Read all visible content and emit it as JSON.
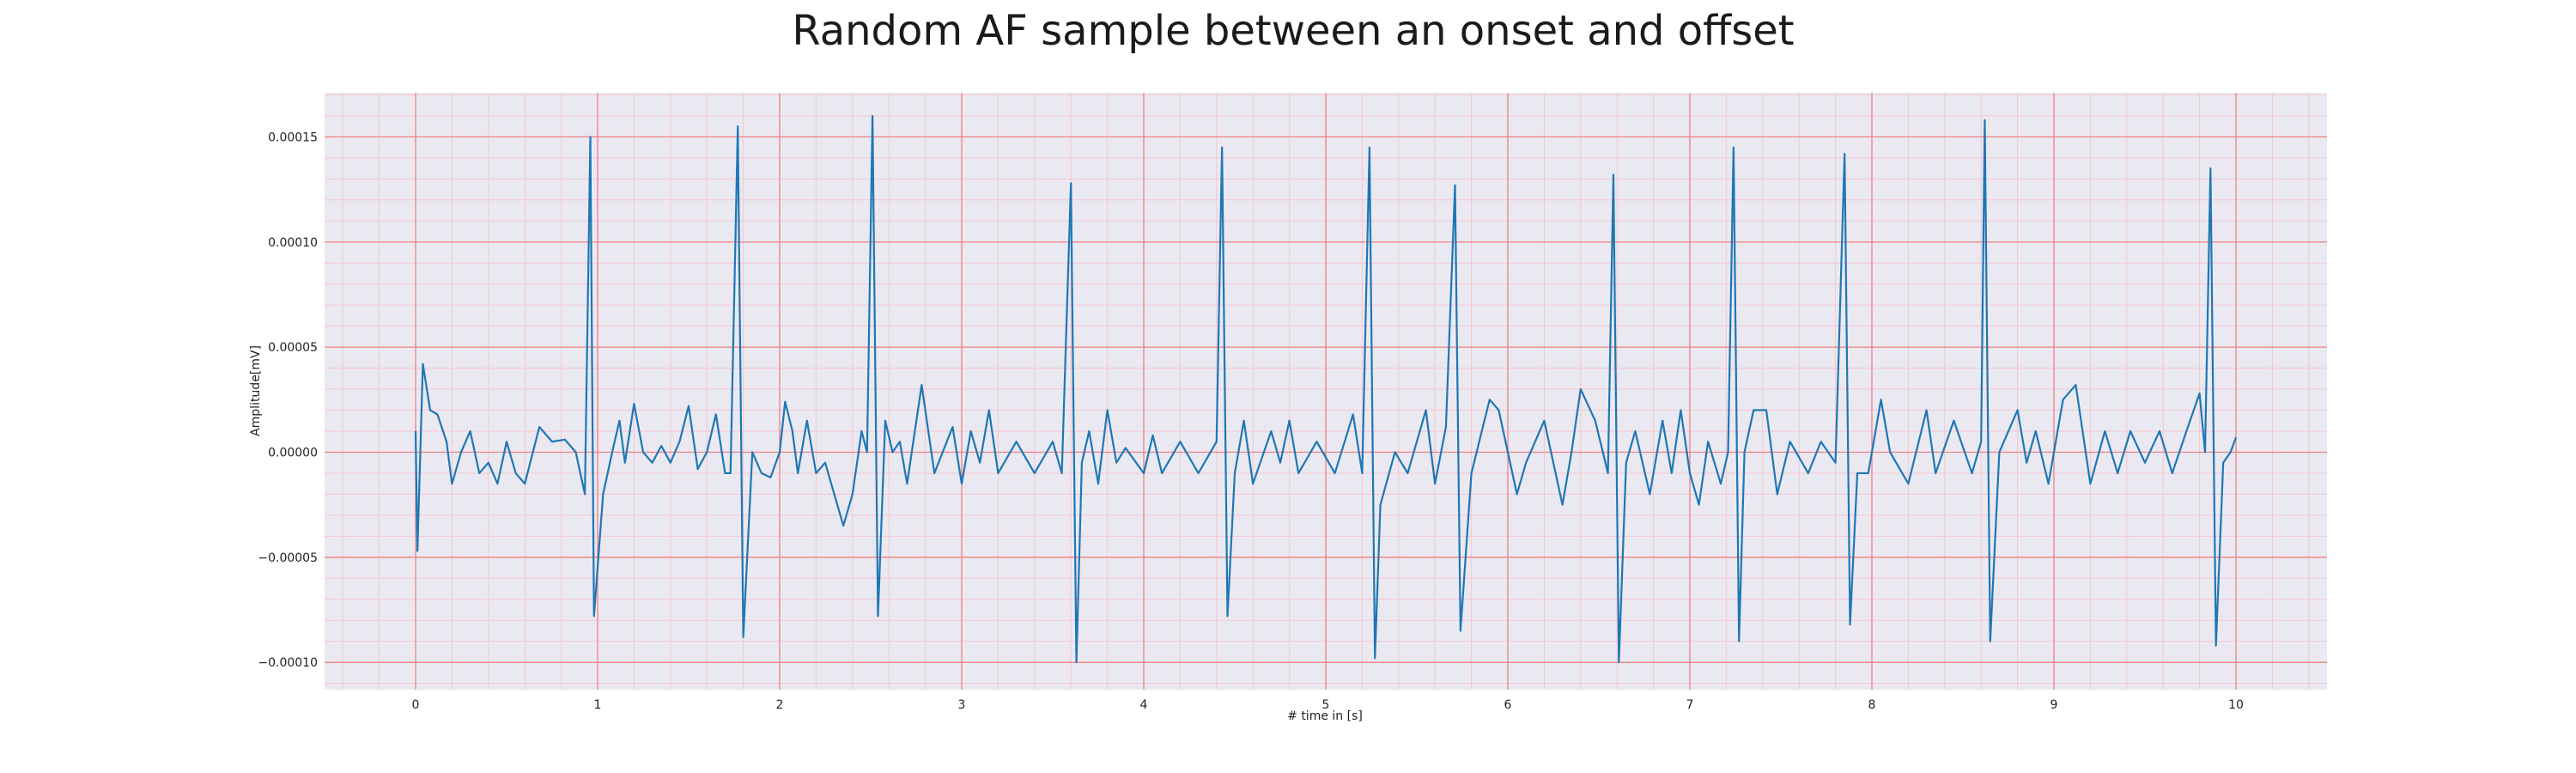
{
  "chart_data": {
    "type": "line",
    "title": "Random AF sample between an onset and offset",
    "xlabel": "# time in [s]",
    "ylabel": "Amplitude[mV]",
    "xlim": [
      -0.5,
      10.5
    ],
    "ylim": [
      -0.000113,
      0.000171
    ],
    "x_ticks": [
      0,
      1,
      2,
      3,
      4,
      5,
      6,
      7,
      8,
      9,
      10
    ],
    "x_tick_labels": [
      "0",
      "1",
      "2",
      "3",
      "4",
      "5",
      "6",
      "7",
      "8",
      "9",
      "10"
    ],
    "y_ticks": [
      -0.0001,
      -5e-05,
      0.0,
      5e-05,
      0.0001,
      0.00015
    ],
    "y_tick_labels": [
      "−0.00010",
      "−0.00005",
      "0.00000",
      "0.00005",
      "0.00010",
      "0.00015"
    ],
    "grid": true,
    "minor_grid": true,
    "colors": {
      "line": "#1f77b4",
      "grid_major": "#f08080",
      "grid_minor": "#f5c6cf",
      "background": "#eae9f2"
    },
    "series": [
      {
        "values": [
          [
            0.0,
            1e-05
          ],
          [
            0.01,
            -4.7e-05
          ],
          [
            0.04,
            4.2e-05
          ],
          [
            0.08,
            2e-05
          ],
          [
            0.12,
            1.8e-05
          ],
          [
            0.17,
            5e-06
          ],
          [
            0.2,
            -1.5e-05
          ],
          [
            0.25,
            0.0
          ],
          [
            0.3,
            1e-05
          ],
          [
            0.35,
            -1e-05
          ],
          [
            0.4,
            -5e-06
          ],
          [
            0.45,
            -1.5e-05
          ],
          [
            0.5,
            5e-06
          ],
          [
            0.55,
            -1e-05
          ],
          [
            0.6,
            -1.5e-05
          ],
          [
            0.68,
            1.2e-05
          ],
          [
            0.75,
            5e-06
          ],
          [
            0.82,
            6e-06
          ],
          [
            0.88,
            0.0
          ],
          [
            0.93,
            -2e-05
          ],
          [
            0.96,
            0.00015
          ],
          [
            0.98,
            -7.8e-05
          ],
          [
            1.03,
            -2e-05
          ],
          [
            1.08,
            0.0
          ],
          [
            1.12,
            1.5e-05
          ],
          [
            1.15,
            -5e-06
          ],
          [
            1.2,
            2.3e-05
          ],
          [
            1.25,
            0.0
          ],
          [
            1.3,
            -5e-06
          ],
          [
            1.35,
            3e-06
          ],
          [
            1.4,
            -5e-06
          ],
          [
            1.45,
            5e-06
          ],
          [
            1.5,
            2.2e-05
          ],
          [
            1.55,
            -8e-06
          ],
          [
            1.6,
            0.0
          ],
          [
            1.65,
            1.8e-05
          ],
          [
            1.7,
            -1e-05
          ],
          [
            1.73,
            -1e-05
          ],
          [
            1.77,
            0.000155
          ],
          [
            1.8,
            -8.8e-05
          ],
          [
            1.85,
            0.0
          ],
          [
            1.9,
            -1e-05
          ],
          [
            1.95,
            -1.2e-05
          ],
          [
            2.0,
            0.0
          ],
          [
            2.03,
            2.4e-05
          ],
          [
            2.07,
            1e-05
          ],
          [
            2.1,
            -1e-05
          ],
          [
            2.15,
            1.5e-05
          ],
          [
            2.2,
            -1e-05
          ],
          [
            2.25,
            -5e-06
          ],
          [
            2.3,
            -2e-05
          ],
          [
            2.35,
            -3.5e-05
          ],
          [
            2.4,
            -2e-05
          ],
          [
            2.45,
            1e-05
          ],
          [
            2.48,
            0.0
          ],
          [
            2.51,
            0.00016
          ],
          [
            2.54,
            -7.8e-05
          ],
          [
            2.58,
            1.5e-05
          ],
          [
            2.62,
            0.0
          ],
          [
            2.66,
            5e-06
          ],
          [
            2.7,
            -1.5e-05
          ],
          [
            2.78,
            3.2e-05
          ],
          [
            2.85,
            -1e-05
          ],
          [
            2.95,
            1.2e-05
          ],
          [
            3.0,
            -1.5e-05
          ],
          [
            3.05,
            1e-05
          ],
          [
            3.1,
            -5e-06
          ],
          [
            3.15,
            2e-05
          ],
          [
            3.2,
            -1e-05
          ],
          [
            3.3,
            5e-06
          ],
          [
            3.4,
            -1e-05
          ],
          [
            3.5,
            5e-06
          ],
          [
            3.55,
            -1e-05
          ],
          [
            3.6,
            0.000128
          ],
          [
            3.63,
            -0.0001
          ],
          [
            3.66,
            -5e-06
          ],
          [
            3.7,
            1e-05
          ],
          [
            3.75,
            -1.5e-05
          ],
          [
            3.8,
            2e-05
          ],
          [
            3.85,
            -5e-06
          ],
          [
            3.9,
            2e-06
          ],
          [
            4.0,
            -1e-05
          ],
          [
            4.05,
            8e-06
          ],
          [
            4.1,
            -1e-05
          ],
          [
            4.2,
            5e-06
          ],
          [
            4.3,
            -1e-05
          ],
          [
            4.4,
            5e-06
          ],
          [
            4.43,
            0.000145
          ],
          [
            4.46,
            -7.8e-05
          ],
          [
            4.5,
            -1e-05
          ],
          [
            4.55,
            1.5e-05
          ],
          [
            4.6,
            -1.5e-05
          ],
          [
            4.7,
            1e-05
          ],
          [
            4.75,
            -5e-06
          ],
          [
            4.8,
            1.5e-05
          ],
          [
            4.85,
            -1e-05
          ],
          [
            4.95,
            5e-06
          ],
          [
            5.05,
            -1e-05
          ],
          [
            5.15,
            1.8e-05
          ],
          [
            5.2,
            -1e-05
          ],
          [
            5.24,
            0.000145
          ],
          [
            5.27,
            -9.8e-05
          ],
          [
            5.3,
            -2.5e-05
          ],
          [
            5.38,
            0.0
          ],
          [
            5.45,
            -1e-05
          ],
          [
            5.55,
            2e-05
          ],
          [
            5.6,
            -1.5e-05
          ],
          [
            5.66,
            1.2e-05
          ],
          [
            5.71,
            0.000127
          ],
          [
            5.74,
            -8.5e-05
          ],
          [
            5.8,
            -1e-05
          ],
          [
            5.9,
            2.5e-05
          ],
          [
            5.95,
            2e-05
          ],
          [
            6.05,
            -2e-05
          ],
          [
            6.1,
            -5e-06
          ],
          [
            6.2,
            1.5e-05
          ],
          [
            6.3,
            -2.5e-05
          ],
          [
            6.35,
            0.0
          ],
          [
            6.4,
            3e-05
          ],
          [
            6.48,
            1.5e-05
          ],
          [
            6.55,
            -1e-05
          ],
          [
            6.58,
            0.000132
          ],
          [
            6.61,
            -0.0001
          ],
          [
            6.65,
            -5e-06
          ],
          [
            6.7,
            1e-05
          ],
          [
            6.78,
            -2e-05
          ],
          [
            6.85,
            1.5e-05
          ],
          [
            6.9,
            -1e-05
          ],
          [
            6.95,
            2e-05
          ],
          [
            7.0,
            -1e-05
          ],
          [
            7.05,
            -2.5e-05
          ],
          [
            7.1,
            5e-06
          ],
          [
            7.17,
            -1.5e-05
          ],
          [
            7.21,
            0.0
          ],
          [
            7.24,
            0.000145
          ],
          [
            7.27,
            -9e-05
          ],
          [
            7.3,
            0.0
          ],
          [
            7.35,
            2e-05
          ],
          [
            7.42,
            2e-05
          ],
          [
            7.48,
            -2e-05
          ],
          [
            7.55,
            5e-06
          ],
          [
            7.65,
            -1e-05
          ],
          [
            7.72,
            5e-06
          ],
          [
            7.8,
            -5e-06
          ],
          [
            7.85,
            0.000142
          ],
          [
            7.88,
            -8.2e-05
          ],
          [
            7.92,
            -1e-05
          ],
          [
            7.98,
            -1e-05
          ],
          [
            8.05,
            2.5e-05
          ],
          [
            8.1,
            0.0
          ],
          [
            8.2,
            -1.5e-05
          ],
          [
            8.3,
            2e-05
          ],
          [
            8.35,
            -1e-05
          ],
          [
            8.45,
            1.5e-05
          ],
          [
            8.55,
            -1e-05
          ],
          [
            8.6,
            5e-06
          ],
          [
            8.62,
            0.000158
          ],
          [
            8.65,
            -9e-05
          ],
          [
            8.7,
            0.0
          ],
          [
            8.8,
            2e-05
          ],
          [
            8.85,
            -5e-06
          ],
          [
            8.9,
            1e-05
          ],
          [
            8.97,
            -1.5e-05
          ],
          [
            9.05,
            2.5e-05
          ],
          [
            9.12,
            3.2e-05
          ],
          [
            9.2,
            -1.5e-05
          ],
          [
            9.28,
            1e-05
          ],
          [
            9.35,
            -1e-05
          ],
          [
            9.42,
            1e-05
          ],
          [
            9.5,
            -5e-06
          ],
          [
            9.58,
            1e-05
          ],
          [
            9.65,
            -1e-05
          ],
          [
            9.72,
            8e-06
          ],
          [
            9.8,
            2.8e-05
          ],
          [
            9.83,
            0.0
          ],
          [
            9.86,
            0.000135
          ],
          [
            9.89,
            -9.2e-05
          ],
          [
            9.93,
            -5e-06
          ],
          [
            9.97,
            0.0
          ],
          [
            10.0,
            7e-06
          ]
        ]
      }
    ]
  }
}
